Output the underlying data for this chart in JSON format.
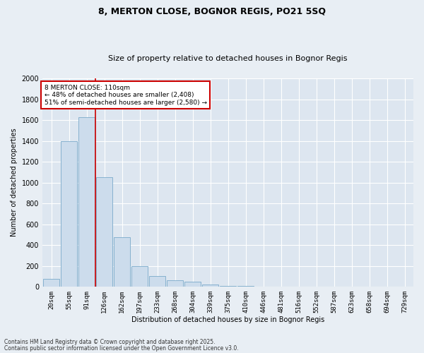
{
  "title1": "8, MERTON CLOSE, BOGNOR REGIS, PO21 5SQ",
  "title2": "Size of property relative to detached houses in Bognor Regis",
  "xlabel": "Distribution of detached houses by size in Bognor Regis",
  "ylabel": "Number of detached properties",
  "categories": [
    "20sqm",
    "55sqm",
    "91sqm",
    "126sqm",
    "162sqm",
    "197sqm",
    "233sqm",
    "268sqm",
    "304sqm",
    "339sqm",
    "375sqm",
    "410sqm",
    "446sqm",
    "481sqm",
    "516sqm",
    "552sqm",
    "587sqm",
    "623sqm",
    "658sqm",
    "694sqm",
    "729sqm"
  ],
  "values": [
    75,
    1400,
    1625,
    1050,
    475,
    200,
    100,
    65,
    50,
    25,
    10,
    5,
    2,
    1,
    0,
    0,
    0,
    0,
    0,
    0,
    0
  ],
  "bar_color": "#ccdcec",
  "bar_edge_color": "#7aaaca",
  "redline_x": 2.5,
  "annotation_text": "8 MERTON CLOSE: 110sqm\n← 48% of detached houses are smaller (2,408)\n51% of semi-detached houses are larger (2,580) →",
  "annotation_box_facecolor": "#ffffff",
  "annotation_box_edgecolor": "#cc0000",
  "redline_color": "#cc0000",
  "ylim": [
    0,
    2000
  ],
  "yticks": [
    0,
    200,
    400,
    600,
    800,
    1000,
    1200,
    1400,
    1600,
    1800,
    2000
  ],
  "footer1": "Contains HM Land Registry data © Crown copyright and database right 2025.",
  "footer2": "Contains public sector information licensed under the Open Government Licence v3.0.",
  "fig_facecolor": "#e8eef4",
  "plot_facecolor": "#dde6f0",
  "grid_color": "#ffffff",
  "title_fontsize": 9,
  "subtitle_fontsize": 8,
  "axis_label_fontsize": 7,
  "tick_fontsize": 6.5,
  "footer_fontsize": 5.5,
  "annotation_fontsize": 6.5
}
